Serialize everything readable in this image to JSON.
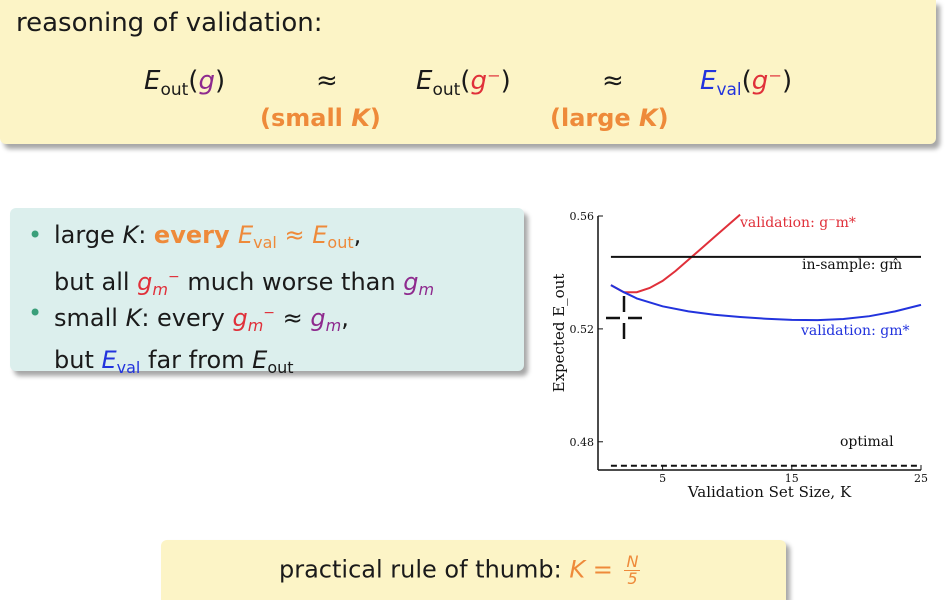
{
  "top_panel": {
    "title": "reasoning of validation:",
    "approx_symbol": "≈",
    "e_label": "E",
    "sub_out": "out",
    "sub_val": "val",
    "g": "g",
    "g_minus": "g⁻",
    "cond_small": "(small ",
    "cond_large": "(large ",
    "k": "K",
    "close": ")"
  },
  "bullets": {
    "b1_large_k": "large ",
    "b1_k": "K",
    "b1_colon": ": ",
    "b1_every": "every ",
    "b1_e": "E",
    "b1_val": "val",
    "b1_approx": " ≈ ",
    "b1_e2": "E",
    "b1_out": "out",
    "b1_comma": ",",
    "b1_line2_a": "but all ",
    "b1_gm": "g",
    "b1_gm_sub": "m",
    "b1_gm_sup": "−",
    "b1_line2_b": " much worse than ",
    "b1_g": "g",
    "b1_g_sub": "m",
    "b2_small_k": "small ",
    "b2_k": "K",
    "b2_every": ": every ",
    "b2_gm": "g",
    "b2_gm_sub": "m",
    "b2_gm_sup": "−",
    "b2_approx": " ≈ ",
    "b2_g": "g",
    "b2_g_sub": "m",
    "b2_comma": ",",
    "b2_line2_a": "but ",
    "b2_e": "E",
    "b2_val": "val",
    "b2_line2_b": " far from ",
    "b2_e2": "E",
    "b2_out": "out"
  },
  "rule": {
    "text": "practical rule of thumb: ",
    "k": "K",
    "eq": " = ",
    "num": "N",
    "den": "5"
  },
  "chart_data": {
    "type": "line",
    "xlabel": "Validation Set Size, K",
    "ylabel": "Expected E_out",
    "xlim": [
      0,
      25
    ],
    "ylim": [
      0.47,
      0.56
    ],
    "xticks": [
      5,
      15,
      25
    ],
    "yticks": [
      0.48,
      0.52,
      0.56
    ],
    "series": [
      {
        "name": "validation: g⁻_m*",
        "color": "#e0303a",
        "dash": "",
        "x": [
          1,
          2,
          3,
          4,
          5,
          6,
          7,
          8,
          9,
          10,
          11
        ],
        "y": [
          0.5355,
          0.533,
          0.533,
          0.5345,
          0.537,
          0.5405,
          0.5445,
          0.5485,
          0.5525,
          0.5565,
          0.5605
        ]
      },
      {
        "name": "in-sample: g_m̂",
        "color": "#111111",
        "dash": "",
        "x": [
          1,
          25
        ],
        "y": [
          0.5455,
          0.5455
        ]
      },
      {
        "name": "validation: g_m*",
        "color": "#2233dd",
        "dash": "",
        "x": [
          1,
          2,
          3,
          5,
          7,
          9,
          11,
          13,
          15,
          17,
          19,
          21,
          23,
          25
        ],
        "y": [
          0.5355,
          0.533,
          0.5308,
          0.528,
          0.5262,
          0.525,
          0.5242,
          0.5236,
          0.5232,
          0.5231,
          0.5235,
          0.5245,
          0.5262,
          0.5285
        ]
      },
      {
        "name": "optimal",
        "color": "#111111",
        "dash": "6,4",
        "x": [
          1,
          25
        ],
        "y": [
          0.4715,
          0.4715
        ]
      }
    ],
    "labels": {
      "red": "validation: g⁻m*",
      "insample": "in-sample: gm̂",
      "blue": "validation: gm*",
      "optimal": "optimal"
    }
  }
}
